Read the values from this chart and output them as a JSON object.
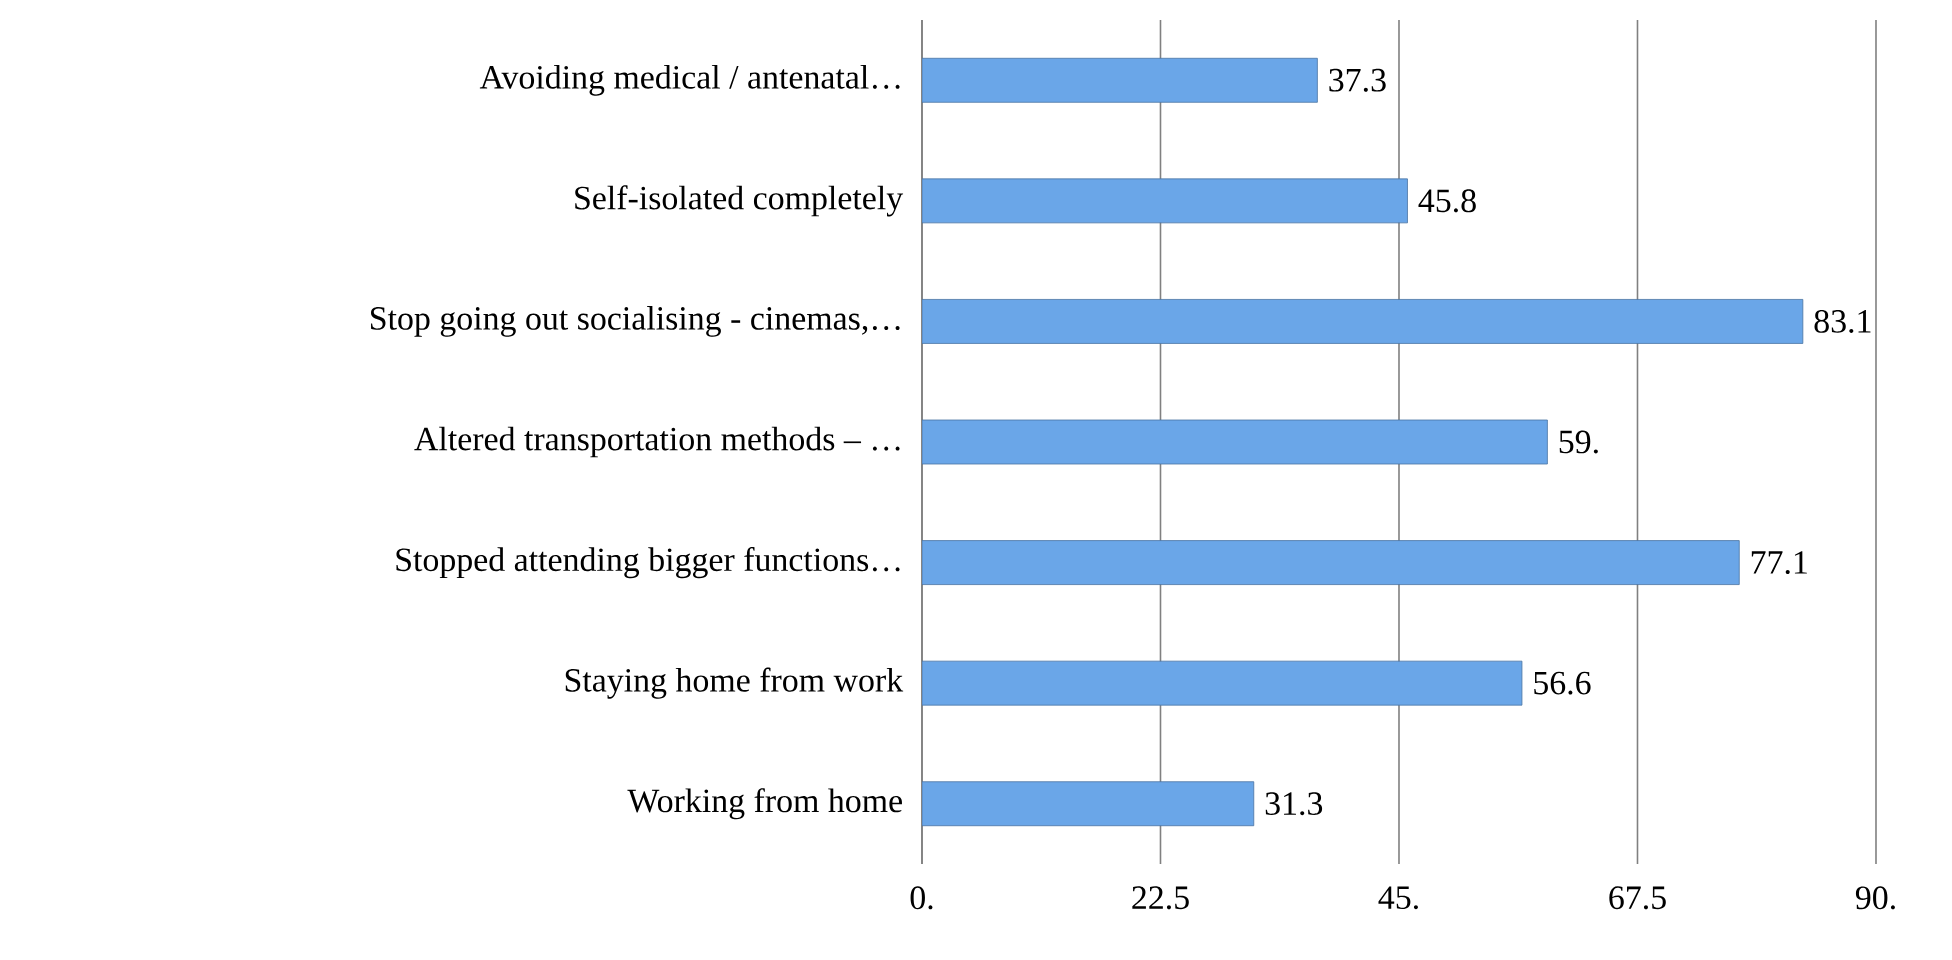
{
  "chart_data": {
    "type": "bar",
    "orientation": "horizontal",
    "categories": [
      "Avoiding medical / antenatal…",
      "Self-isolated completely",
      "Stop going out socialising - cinemas,…",
      "Altered transportation  methods – …",
      "Stopped attending bigger functions…",
      "Staying home from work",
      "Working from home"
    ],
    "values": [
      37.3,
      45.8,
      83.1,
      59,
      77.1,
      56.6,
      31.3
    ],
    "value_labels": [
      "37.3",
      "45.8",
      "83.1",
      "59.",
      "77.1",
      "56.6",
      "31.3"
    ],
    "color": "#6aa6e8",
    "xlim": [
      0,
      90
    ],
    "xticks": [
      {
        "value": 0,
        "label": "0."
      },
      {
        "value": 22.5,
        "label": "22.5"
      },
      {
        "value": 45,
        "label": "45."
      },
      {
        "value": 67.5,
        "label": "67.5"
      },
      {
        "value": 90,
        "label": "90."
      }
    ],
    "grid": "x"
  }
}
